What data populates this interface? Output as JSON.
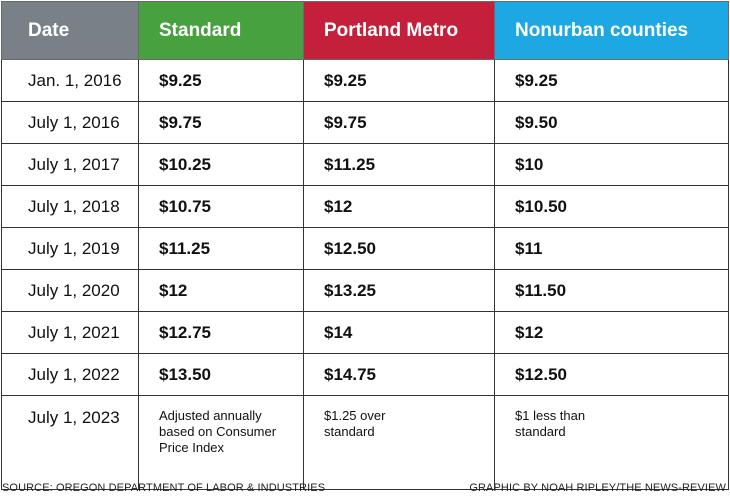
{
  "chart_data": {
    "type": "table",
    "columns": [
      "Date",
      "Standard",
      "Portland Metro",
      "Nonurban counties"
    ],
    "header_colors": [
      "#7a8087",
      "#47a13f",
      "#c4203c",
      "#1ea8e3"
    ],
    "rows": [
      [
        "Jan. 1, 2016",
        "$9.25",
        "$9.25",
        "$9.25"
      ],
      [
        "July 1, 2016",
        "$9.75",
        "$9.75",
        "$9.50"
      ],
      [
        "July 1, 2017",
        "$10.25",
        "$11.25",
        "$10"
      ],
      [
        "July 1, 2018",
        "$10.75",
        "$12",
        "$10.50"
      ],
      [
        "July 1, 2019",
        "$11.25",
        "$12.50",
        "$11"
      ],
      [
        "July 1, 2020",
        "$12",
        "$13.25",
        "$11.50"
      ],
      [
        "July 1, 2021",
        "$12.75",
        "$14",
        "$12"
      ],
      [
        "July 1, 2022",
        "$13.50",
        "$14.75",
        "$12.50"
      ]
    ],
    "final_row": {
      "date": "July 1, 2023",
      "standard": [
        "Adjusted annually",
        "based on Consumer",
        "Price Index"
      ],
      "portland": [
        "$1.25 over",
        "standard"
      ],
      "nonurban": [
        "$1 less than",
        "standard"
      ]
    }
  },
  "footer": {
    "source": "SOURCE: OREGON DEPARTMENT OF LABOR & INDUSTRIES",
    "credit": "GRAPHIC BY NOAH RIPLEY/THE NEWS-REVIEW"
  }
}
